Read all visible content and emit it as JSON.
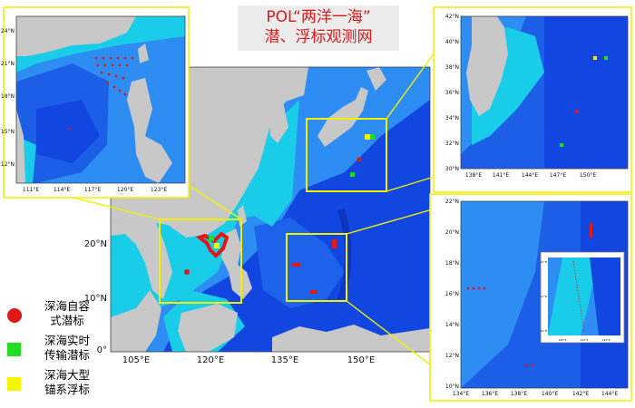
{
  "title": {
    "line1": "POL“两洋一海”",
    "line2": "潜、浮标观测网"
  },
  "legend": [
    {
      "label_line1": "深海自容",
      "label_line2": "式潜标",
      "color": "#e01818",
      "shape": "circle"
    },
    {
      "label_line1": "深海实时",
      "label_line2": "传输潜标",
      "color": "#22dd22",
      "shape": "square"
    },
    {
      "label_line1": "深海大型",
      "label_line2": "锚系浮标",
      "color": "#f5f500",
      "shape": "square"
    }
  ],
  "colors": {
    "land": "#c8c8c8",
    "deep_sea": "#1246e0",
    "mid_sea": "#2e8df2",
    "shelf_sea": "#19cce8",
    "highlight_box": "#f0f000"
  },
  "main_map": {
    "lon_labels": [
      "105°E",
      "120°E",
      "135°E",
      "150°E"
    ],
    "lat_labels": [
      "0°",
      "10°N",
      "20°N"
    ]
  },
  "inset_scs": {
    "lon_labels": [
      "111°E",
      "114°E",
      "117°E",
      "120°E",
      "123°E"
    ],
    "lat_labels": [
      "24°N",
      "21°N",
      "18°N",
      "15°N",
      "12°N"
    ]
  },
  "inset_kuroshio": {
    "lon_labels": [
      "138°E",
      "141°E",
      "144°E",
      "147°E",
      "150°E"
    ],
    "lat_labels": [
      "42°N",
      "40°N",
      "38°N",
      "36°N",
      "34°N",
      "32°N",
      "30°N"
    ]
  },
  "inset_wpac": {
    "lon_labels": [
      "134°E",
      "136°E",
      "138°E",
      "140°E",
      "142°E",
      "144°E"
    ],
    "lat_labels": [
      "22°N",
      "20°N",
      "18°N",
      "16°N",
      "14°N",
      "12°N",
      "10°N"
    ]
  },
  "inset_mini": {
    "lon_labels": [
      "140°E",
      "142°E",
      "144°E"
    ],
    "lat_labels": [
      "10°N",
      "11°N",
      "12°N"
    ]
  }
}
